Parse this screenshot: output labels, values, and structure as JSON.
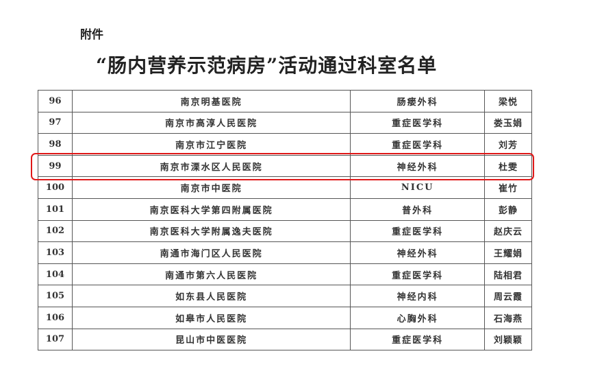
{
  "attachment_label": "附件",
  "title": "“肠内营养示范病房”活动通过科室名单",
  "highlight_color": "#e01818",
  "highlighted_row": "99",
  "rows": [
    {
      "no": "96",
      "hospital": "南京明基医院",
      "department": "肠瘘外科",
      "person": "梁悦"
    },
    {
      "no": "97",
      "hospital": "南京市高淳人民医院",
      "department": "重症医学科",
      "person": "娄玉娟"
    },
    {
      "no": "98",
      "hospital": "南京市江宁医院",
      "department": "重症医学科",
      "person": "刘芳"
    },
    {
      "no": "99",
      "hospital": "南京市溧水区人民医院",
      "department": "神经外科",
      "person": "杜雯"
    },
    {
      "no": "100",
      "hospital": "南京市中医院",
      "department": "NICU",
      "person": "崔竹"
    },
    {
      "no": "101",
      "hospital": "南京医科大学第四附属医院",
      "department": "普外科",
      "person": "彭静"
    },
    {
      "no": "102",
      "hospital": "南京医科大学附属逸夫医院",
      "department": "重症医学科",
      "person": "赵庆云"
    },
    {
      "no": "103",
      "hospital": "南通市海门区人民医院",
      "department": "神经外科",
      "person": "王耀娟"
    },
    {
      "no": "104",
      "hospital": "南通市第六人民医院",
      "department": "重症医学科",
      "person": "陆相君"
    },
    {
      "no": "105",
      "hospital": "如东县人民医院",
      "department": "神经内科",
      "person": "周云霞"
    },
    {
      "no": "106",
      "hospital": "如皋市人民医院",
      "department": "心胸外科",
      "person": "石海燕"
    },
    {
      "no": "107",
      "hospital": "昆山市中医医院",
      "department": "重症医学科",
      "person": "刘颖颖"
    }
  ]
}
